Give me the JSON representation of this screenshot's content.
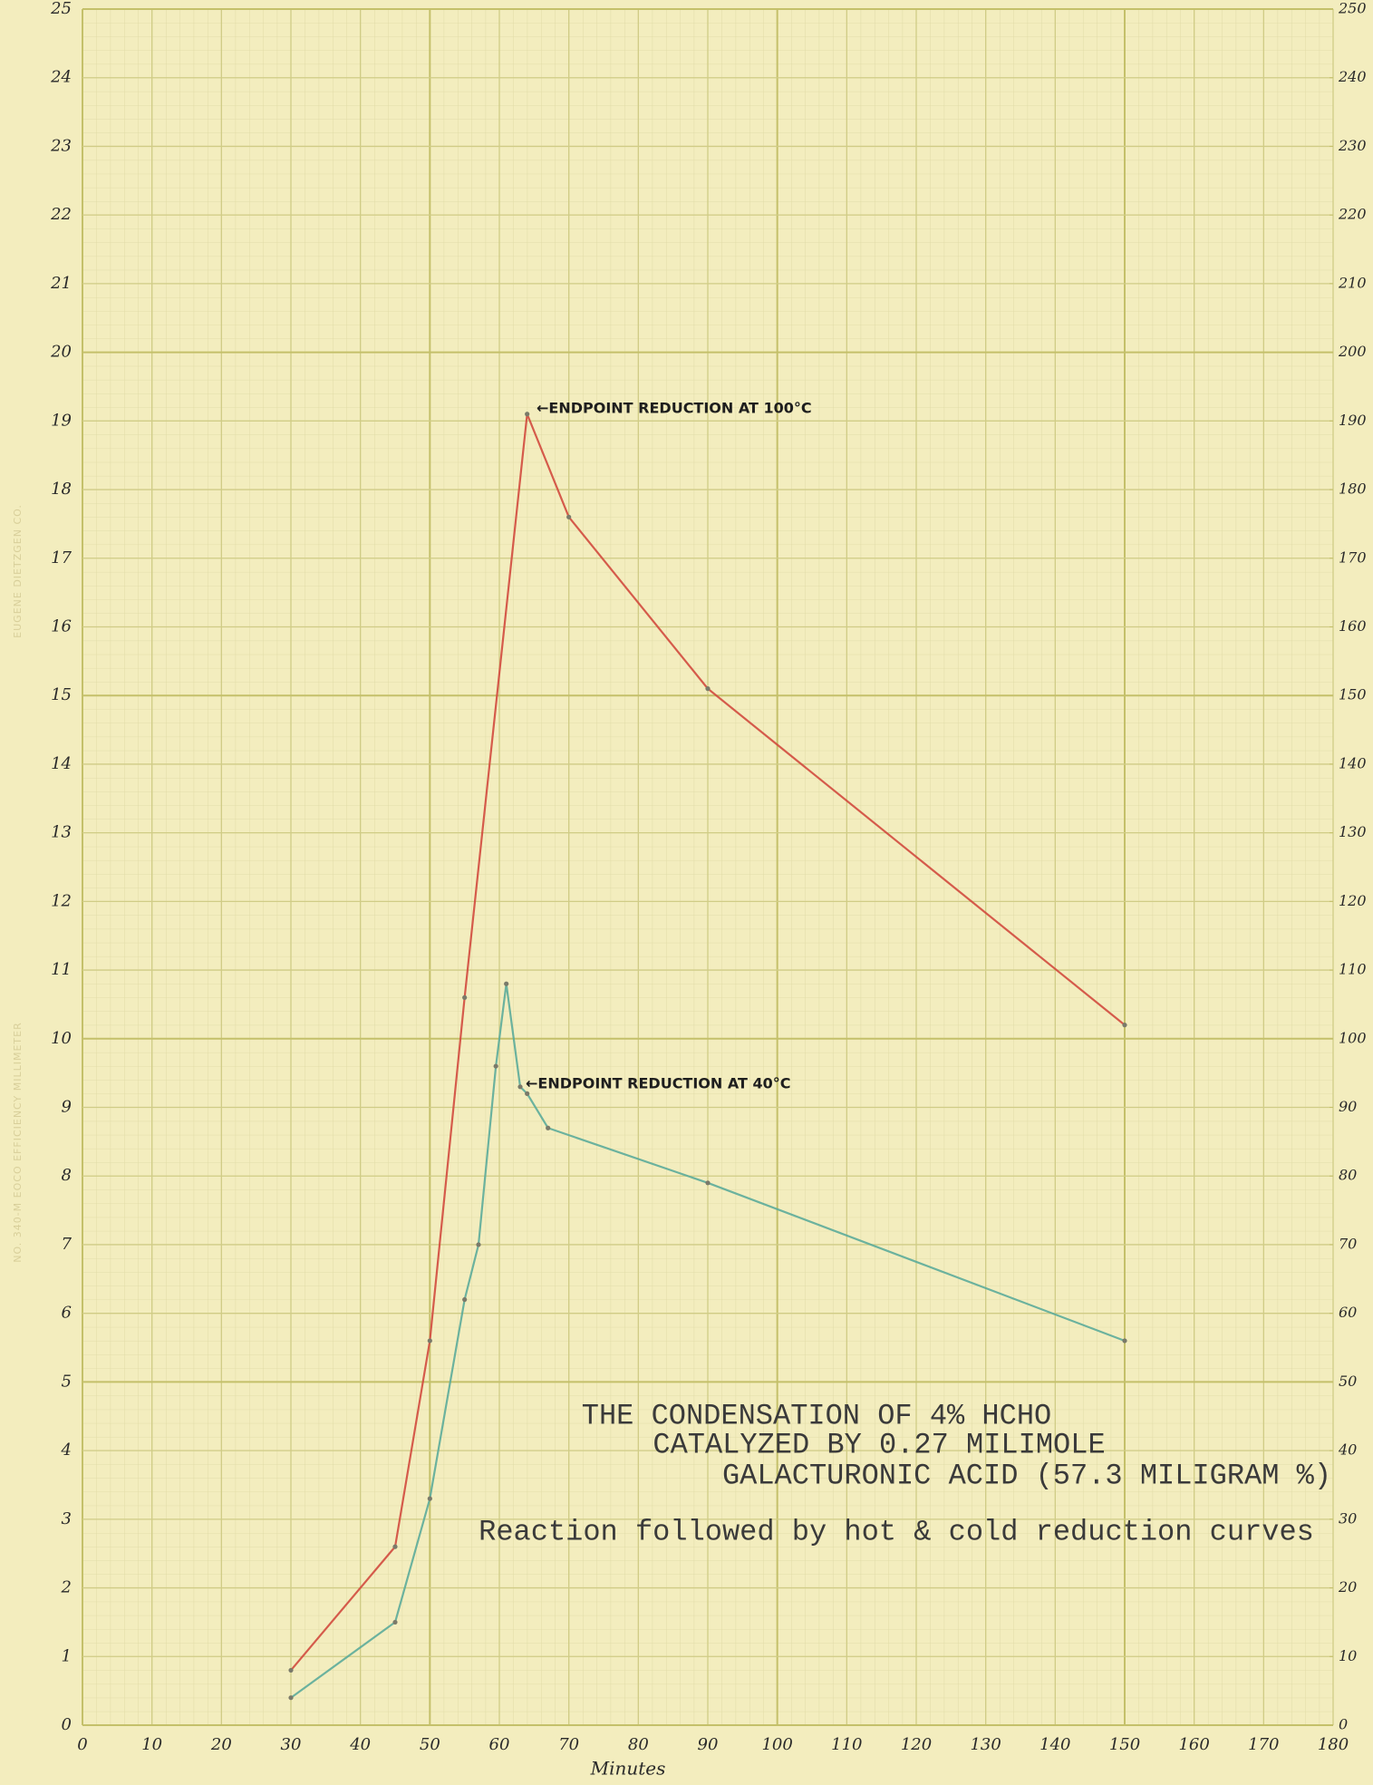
{
  "chart_data": {
    "type": "line",
    "title_lines": [
      "THE CONDENSATION OF 4% HCHO",
      "CATALYZED BY 0.27 MILIMOLE",
      "GALACTURONIC ACID (57.3 MILIGRAM %)"
    ],
    "subtitle": "Reaction followed by hot & cold reduction curves",
    "x_label": "Minutes",
    "annotations": [
      "←ENDPOINT REDUCTION AT 100°C",
      "←ENDPOINT REDUCTION AT 40°C"
    ],
    "side_notes": [
      "EUGENE DIETZGEN CO.",
      "NO. 340-M EOCO EFFICIENCY MILLIMETER"
    ],
    "xlim": [
      0,
      180
    ],
    "xticks": [
      0,
      10,
      20,
      30,
      40,
      50,
      60,
      70,
      80,
      90,
      100,
      110,
      120,
      130,
      140,
      150,
      160,
      170,
      180
    ],
    "ylim": [
      0,
      25
    ],
    "yticks": [
      0,
      1,
      2,
      3,
      4,
      5,
      6,
      7,
      8,
      9,
      10,
      11,
      12,
      13,
      14,
      15,
      16,
      17,
      18,
      19,
      20,
      21,
      22,
      23,
      24,
      25
    ],
    "y2lim": [
      0,
      250
    ],
    "y2ticks": [
      0,
      10,
      20,
      30,
      40,
      50,
      60,
      70,
      80,
      90,
      100,
      110,
      120,
      130,
      140,
      150,
      160,
      170,
      180,
      190,
      200,
      210,
      220,
      230,
      240,
      250
    ],
    "grid": true,
    "series": [
      {
        "color": "#d24a3e",
        "x": [
          30,
          45,
          50,
          55,
          64,
          70,
          90,
          150
        ],
        "values": [
          0.8,
          2.6,
          5.6,
          10.6,
          19.1,
          17.6,
          15.1,
          10.2
        ]
      },
      {
        "color": "#5cab9a",
        "x": [
          30,
          45,
          50,
          55,
          57,
          59.5,
          61,
          63,
          64,
          67,
          90,
          150
        ],
        "values": [
          0.4,
          1.5,
          3.3,
          6.2,
          7.0,
          9.6,
          10.8,
          9.3,
          9.2,
          8.7,
          7.9,
          5.6
        ]
      }
    ]
  }
}
